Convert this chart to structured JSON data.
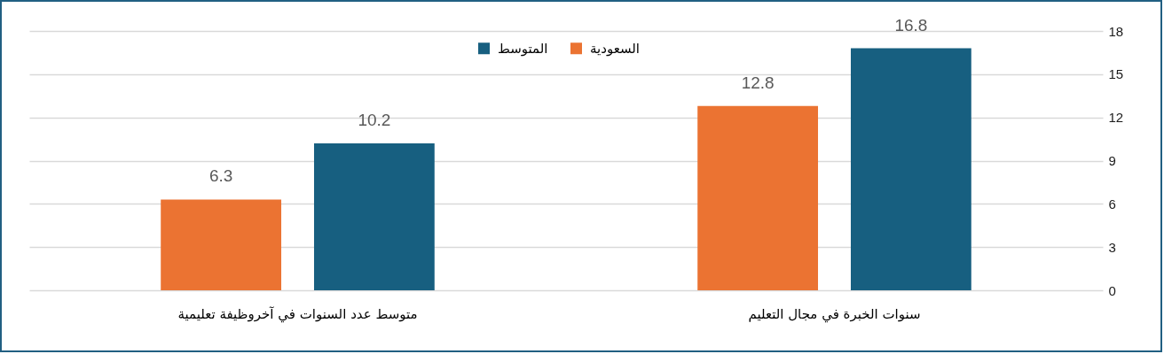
{
  "chart_data": {
    "type": "bar",
    "categories": [
      "متوسط عدد السنوات في آخروظيفة تعليمية",
      "سنوات الخبرة في مجال التعليم"
    ],
    "series": [
      {
        "name": "السعودية",
        "color": "#eb7332",
        "values": [
          6.3,
          12.8
        ]
      },
      {
        "name": "المتوسط",
        "color": "#175f80",
        "values": [
          10.2,
          16.8
        ]
      }
    ],
    "ylim": [
      0,
      18
    ],
    "yticks": [
      0,
      3,
      6,
      9,
      12,
      15,
      18
    ],
    "grid": "y",
    "legend": "top",
    "data_labels": true
  }
}
